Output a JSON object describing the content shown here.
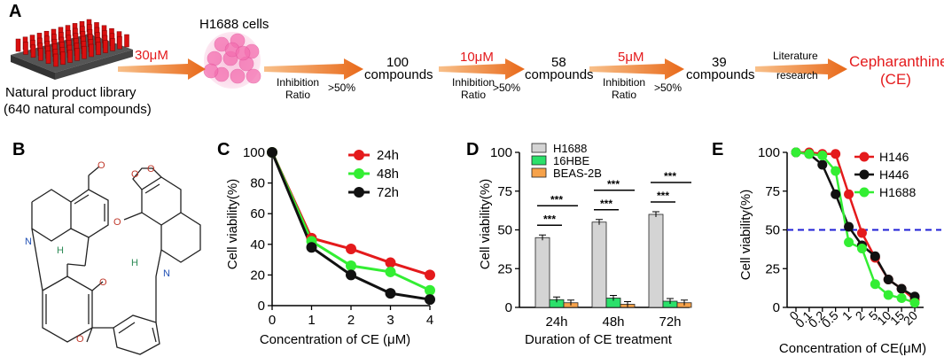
{
  "panel_labels": {
    "a": "A",
    "b": "B",
    "c": "C",
    "d": "D",
    "e": "E"
  },
  "colors": {
    "red": "#e41a1c",
    "green": "#33ee33",
    "black": "#111111",
    "arrow": "#ec7a1e",
    "bar_gray": "#d4d4d4",
    "bar_green": "#2be06a",
    "bar_orange": "#f6a24a",
    "dash_blue": "#1f1fd6"
  },
  "workflow": {
    "library_label_1": "Natural product library",
    "library_label_2": "(640 natural compounds)",
    "dose_1": "30μM",
    "cells_label": "H1688 cells",
    "inhibition_1": "Inhibition",
    "ratio_1": "Ratio",
    "threshold_1": ">50%",
    "count_1": "100",
    "compounds_1": "compounds",
    "dose_2": "10μM",
    "inhibition_2": "Inhibition",
    "ratio_2": "Ratio",
    "threshold_2": ">50%",
    "count_2": "58",
    "compounds_2": "compounds",
    "dose_3": "5μM",
    "inhibition_3": "Inhibition",
    "ratio_3": "Ratio",
    "threshold_3": ">50%",
    "count_3": "39",
    "compounds_3": "compounds",
    "literature_1": "Literature",
    "literature_2": "research",
    "result_1": "Cepharanthine",
    "result_2": "(CE)"
  },
  "structure": {
    "atom_H_1": "H",
    "atom_H_2": "H",
    "atom_N_1": "N",
    "atom_N_2": "N",
    "atom_O": "O"
  },
  "chart_data": [
    {
      "panel": "C",
      "type": "line",
      "x": [
        0,
        1,
        2,
        3,
        4
      ],
      "xticks": [
        "0",
        "1",
        "2",
        "3",
        "4"
      ],
      "series": [
        {
          "name": "24h",
          "color": "#e41a1c",
          "values": [
            100,
            44,
            37,
            28,
            20
          ]
        },
        {
          "name": "48h",
          "color": "#33ee33",
          "values": [
            100,
            42,
            26,
            22,
            10
          ]
        },
        {
          "name": "72h",
          "color": "#111111",
          "values": [
            100,
            38,
            20,
            8,
            4
          ]
        }
      ],
      "ylim": [
        0,
        100
      ],
      "yticks": [
        "0",
        "20",
        "40",
        "60",
        "80",
        "100"
      ],
      "xlabel": "Concentration of CE (μM)",
      "ylabel": "Cell viability(%)"
    },
    {
      "panel": "D",
      "type": "bar",
      "categories": [
        "24h",
        "48h",
        "72h"
      ],
      "series": [
        {
          "name": "H1688",
          "color": "#d4d4d4",
          "values": [
            45,
            55,
            60
          ]
        },
        {
          "name": "16HBE",
          "color": "#2be06a",
          "values": [
            5,
            6,
            4
          ]
        },
        {
          "name": "BEAS-2B",
          "color": "#f6a24a",
          "values": [
            3,
            2,
            3
          ]
        }
      ],
      "significance": [
        "***",
        "***",
        "***",
        "***",
        "***",
        "***"
      ],
      "ylim": [
        0,
        100
      ],
      "yticks": [
        "0",
        "25",
        "50",
        "75",
        "100"
      ],
      "xlabel": "Duration of CE treatment",
      "ylabel": "Cell viability(%)"
    },
    {
      "panel": "E",
      "type": "line",
      "categories": [
        "0",
        "0.1",
        "0.2",
        "0.5",
        "1",
        "2",
        "5",
        "10",
        "15",
        "20"
      ],
      "series": [
        {
          "name": "H146",
          "color": "#e41a1c",
          "values": [
            100,
            100,
            99,
            99,
            73,
            48,
            32,
            18,
            12,
            5
          ]
        },
        {
          "name": "H446",
          "color": "#111111",
          "values": [
            100,
            99,
            92,
            73,
            52,
            40,
            33,
            18,
            12,
            7
          ]
        },
        {
          "name": "H1688",
          "color": "#33ee33",
          "values": [
            100,
            99,
            98,
            88,
            42,
            38,
            15,
            8,
            6,
            3
          ]
        }
      ],
      "reference_line": 50,
      "ylim": [
        0,
        100
      ],
      "yticks": [
        "0",
        "25",
        "50",
        "75",
        "100"
      ],
      "xlabel": "Concentration of CE(μM)",
      "ylabel": "Cell viability(%)"
    }
  ]
}
